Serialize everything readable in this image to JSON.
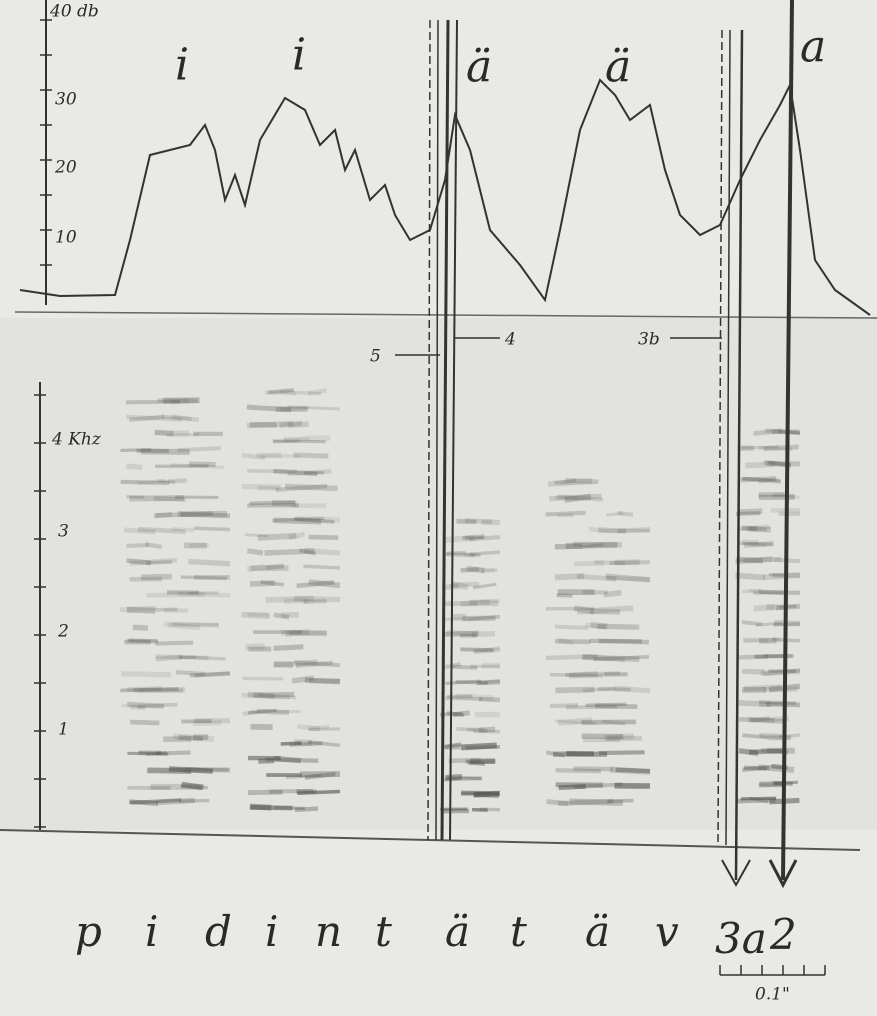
{
  "intensity_axis": {
    "labels": [
      "40 db",
      "30",
      "20",
      "10"
    ]
  },
  "vowels": [
    "i",
    "i",
    "ä",
    "ä",
    "a"
  ],
  "markers": [
    "5",
    "4",
    "3b"
  ],
  "frequency_axis": {
    "labels": [
      "4 Khz",
      "3",
      "2",
      "1"
    ]
  },
  "phonemes": [
    "p",
    "i",
    "d",
    "i",
    "n",
    "t",
    "ä",
    "t",
    "ä",
    "v"
  ],
  "arrow_labels": [
    "3a",
    "2"
  ],
  "scale_label": "0.1\""
}
